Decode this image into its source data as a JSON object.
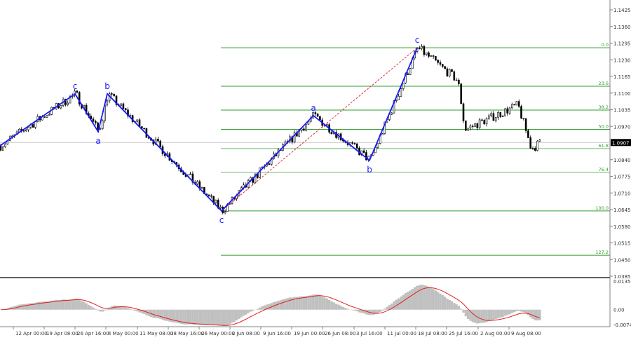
{
  "chart_data": {
    "type": "candlestick",
    "price_axis": {
      "range": [
        1.0385,
        1.1425
      ],
      "ticks": [
        "1.1425",
        "1.1360",
        "1.1295",
        "1.1230",
        "1.1165",
        "1.1100",
        "1.1035",
        "1.0970",
        "1.0840",
        "1.0775",
        "1.0710",
        "1.0645",
        "1.0580",
        "1.0515",
        "1.0450",
        "1.0385"
      ]
    },
    "current_price": "1.0907",
    "time_axis": {
      "ticks": [
        "00",
        "12 Apr 00:00",
        "19 Apr 08:00",
        "26 Apr 16:00",
        "4 May 00:00",
        "11 May 08:00",
        "18 May 16:00",
        "26 May 00:00",
        "2 Jun 08:00",
        "9 Jun 16:00",
        "19 Jun 00:00",
        "26 Jun 08:00",
        "3 Jul 16:00",
        "11 Jul 00:00",
        "18 Jul 08:00",
        "25 Jul 16:00",
        "2 Aug 00:00",
        "9 Aug 08:00"
      ]
    },
    "fibonacci": {
      "high": 1.1277,
      "low": 1.064,
      "levels": [
        {
          "label": "0.0",
          "ratio": 0
        },
        {
          "label": "23.6",
          "ratio": 0.236
        },
        {
          "label": "38.2",
          "ratio": 0.382
        },
        {
          "label": "50.0",
          "ratio": 0.5
        },
        {
          "label": "61.8",
          "ratio": 0.618
        },
        {
          "label": "76.4",
          "ratio": 0.764
        },
        {
          "label": "100.0",
          "ratio": 1.0
        },
        {
          "label": "127.2",
          "ratio": 1.272
        }
      ],
      "color": "#2e9e2e"
    },
    "waves": [
      {
        "label": "",
        "price": 1.0894
      },
      {
        "label": "c",
        "price": 1.1097
      },
      {
        "label": "a",
        "price": 1.0949
      },
      {
        "label": "b",
        "price": 1.1097
      },
      {
        "label": "c",
        "price": 1.064
      },
      {
        "label": "a",
        "price": 1.1012
      },
      {
        "label": "b",
        "price": 1.0837
      },
      {
        "label": "c",
        "price": 1.1277
      }
    ],
    "wave_color": "#1a1aff",
    "price_path": [
      1.0894,
      1.1097,
      1.0949,
      1.1097,
      1.064,
      1.1012,
      1.0837,
      1.1277,
      1.1149,
      1.11,
      1.0957,
      1.1053,
      1.0883,
      1.0907
    ],
    "oscillator": {
      "ticks": [
        "0.01354",
        "0.00",
        "-0.00743"
      ],
      "range": [
        -0.00743,
        0.01354
      ],
      "histogram_color": "#c0c0c0",
      "signal_color": "#e02020"
    }
  }
}
